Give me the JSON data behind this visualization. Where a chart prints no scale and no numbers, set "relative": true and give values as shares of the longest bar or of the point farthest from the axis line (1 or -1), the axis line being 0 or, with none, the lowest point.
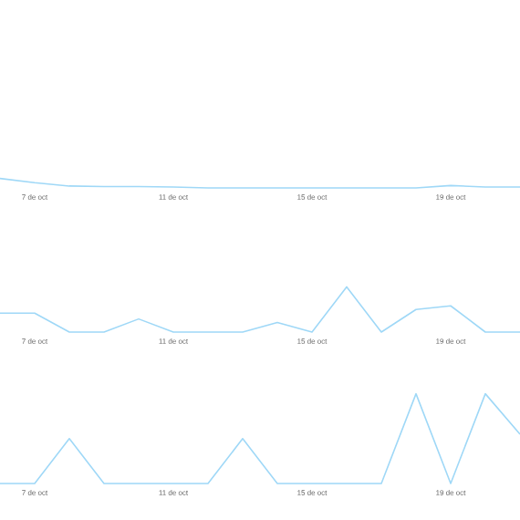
{
  "chart_data": [
    {
      "type": "line",
      "relative": true,
      "tick_labels": "x",
      "color": "#9fd8f7",
      "categories": [
        null,
        "7 de oct",
        null,
        null,
        null,
        "11 de oct",
        null,
        null,
        null,
        "15 de oct",
        null,
        null,
        null,
        "19 de oct",
        null,
        null
      ],
      "values": [
        1.0,
        0.55,
        0.2,
        0.15,
        0.15,
        0.1,
        0,
        0,
        0,
        0,
        0,
        0,
        0,
        0.25,
        0.1,
        0.1
      ]
    },
    {
      "type": "line",
      "relative": true,
      "tick_labels": "x",
      "color": "#9fd8f7",
      "categories": [
        null,
        "7 de oct",
        null,
        null,
        null,
        "11 de oct",
        null,
        null,
        null,
        "15 de oct",
        null,
        null,
        null,
        "19 de oct",
        null,
        null
      ],
      "values": [
        0.42,
        0.42,
        0,
        0,
        0.29,
        0,
        0,
        0,
        0.21,
        0,
        1.0,
        0,
        0.5,
        0.58,
        0,
        0
      ]
    },
    {
      "type": "line",
      "relative": true,
      "tick_labels": "x",
      "color": "#9fd8f7",
      "categories": [
        null,
        "7 de oct",
        null,
        null,
        null,
        "11 de oct",
        null,
        null,
        null,
        "15 de oct",
        null,
        null,
        null,
        "19 de oct",
        null,
        null
      ],
      "values": [
        0,
        0,
        0.5,
        0,
        0,
        0,
        0,
        0.5,
        0,
        0,
        0,
        0,
        1.0,
        0,
        1.0,
        0.55
      ]
    }
  ]
}
